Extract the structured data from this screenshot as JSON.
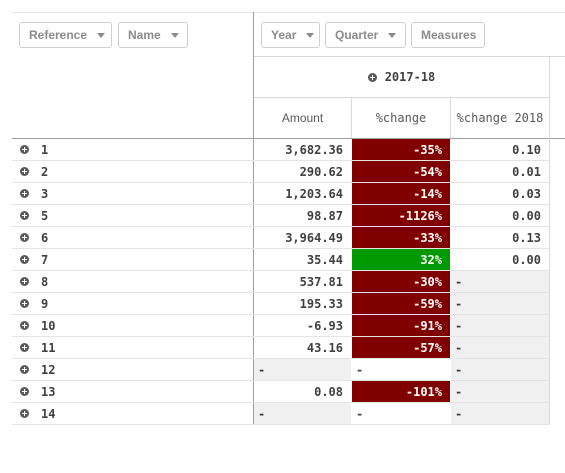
{
  "filters": {
    "reference_label": "Reference",
    "name_label": "Name",
    "year_label": "Year",
    "quarter_label": "Quarter",
    "measures_label": "Measures"
  },
  "period": {
    "label": "2017-18"
  },
  "columns": {
    "amount": "Amount",
    "change": "%change",
    "change2018": "%change 2018"
  },
  "colors": {
    "negative": "#800000",
    "positive": "#009900",
    "null_fill": "#f0f0f0"
  },
  "rows": [
    {
      "ref": "1",
      "amount": "3,682.36",
      "change": "-35%",
      "change2018": "0.10",
      "status": "neg"
    },
    {
      "ref": "2",
      "amount": "290.62",
      "change": "-54%",
      "change2018": "0.01",
      "status": "neg"
    },
    {
      "ref": "3",
      "amount": "1,203.64",
      "change": "-14%",
      "change2018": "0.03",
      "status": "neg"
    },
    {
      "ref": "5",
      "amount": "98.87",
      "change": "-1126%",
      "change2018": "0.00",
      "status": "neg"
    },
    {
      "ref": "6",
      "amount": "3,964.49",
      "change": "-33%",
      "change2018": "0.13",
      "status": "neg"
    },
    {
      "ref": "7",
      "amount": "35.44",
      "change": "32%",
      "change2018": "0.00",
      "status": "pos"
    },
    {
      "ref": "8",
      "amount": "537.81",
      "change": "-30%",
      "change2018": "-",
      "status": "neg"
    },
    {
      "ref": "9",
      "amount": "195.33",
      "change": "-59%",
      "change2018": "-",
      "status": "neg"
    },
    {
      "ref": "10",
      "amount": "-6.93",
      "change": "-91%",
      "change2018": "-",
      "status": "neg"
    },
    {
      "ref": "11",
      "amount": "43.16",
      "change": "-57%",
      "change2018": "-",
      "status": "neg"
    },
    {
      "ref": "12",
      "amount": "-",
      "change": "-",
      "change2018": "-",
      "status": "none"
    },
    {
      "ref": "13",
      "amount": "0.08",
      "change": "-101%",
      "change2018": "-",
      "status": "neg"
    },
    {
      "ref": "14",
      "amount": "-",
      "change": "-",
      "change2018": "-",
      "status": "none"
    }
  ]
}
